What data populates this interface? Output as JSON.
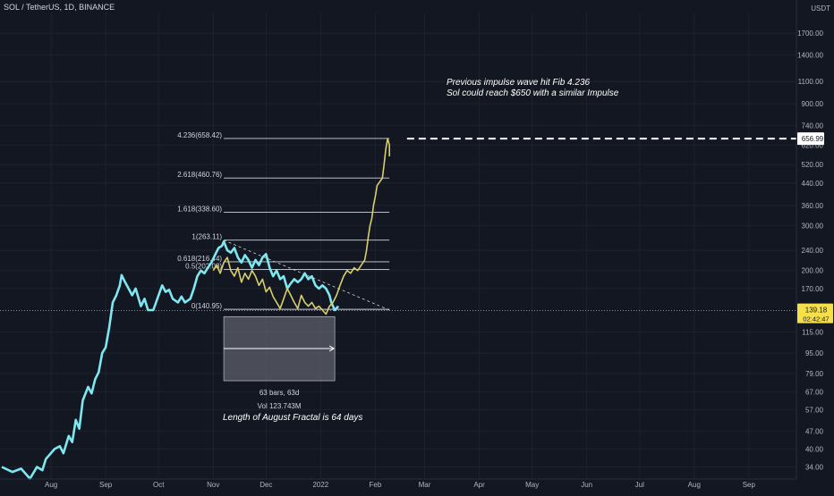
{
  "header": {
    "symbol": "SOL / TetherUS",
    "interval": "1D",
    "exchange": "BINANCE",
    "separator": ", "
  },
  "colors": {
    "background": "#131722",
    "grid": "#1e222d",
    "price_line": "#7ee7f0",
    "fractal_line": "#d8cf6a",
    "fib_line": "#d1d4dc",
    "current_price_bg": "#f5e04a",
    "current_price_line": "#f5e04a",
    "target_label_bg": "#ffffff",
    "measure_box": "#5d606b",
    "axis_text": "#b2b5be"
  },
  "annotations": {
    "target_line1": "Previous impulse wave hit Fib 4.236",
    "target_line2": "Sol could reach $650 with a similar Impulse",
    "fractal_note": "Length of August Fractal is 64 days",
    "measure_bars": "63 bars, 63d",
    "measure_vol": "Vol 123.743M"
  },
  "price_scale": {
    "currency": "USDT",
    "current_price": "139.18",
    "countdown": "02:42:47",
    "target_price": "656.99"
  },
  "chart_data": {
    "type": "line",
    "log_scale": true,
    "xlabel": "",
    "ylabel": "",
    "xlim": [
      "2021-07-03",
      "2022-09-28"
    ],
    "ylim": [
      30.5,
      2050
    ],
    "x_ticks": [
      {
        "label": "Aug",
        "date": "2021-08-01"
      },
      {
        "label": "Sep",
        "date": "2021-09-01"
      },
      {
        "label": "Oct",
        "date": "2021-10-01"
      },
      {
        "label": "Nov",
        "date": "2021-11-01"
      },
      {
        "label": "Dec",
        "date": "2021-12-01"
      },
      {
        "label": "2022",
        "date": "2022-01-01"
      },
      {
        "label": "Feb",
        "date": "2022-02-01"
      },
      {
        "label": "Mar",
        "date": "2022-03-01"
      },
      {
        "label": "Apr",
        "date": "2022-04-01"
      },
      {
        "label": "May",
        "date": "2022-05-01"
      },
      {
        "label": "Jun",
        "date": "2022-06-01"
      },
      {
        "label": "Jul",
        "date": "2022-07-01"
      },
      {
        "label": "Aug",
        "date": "2022-08-01"
      },
      {
        "label": "Sep",
        "date": "2022-09-01"
      }
    ],
    "y_ticks": [
      "34.00",
      "40.00",
      "47.00",
      "57.00",
      "67.00",
      "79.00",
      "95.00",
      "115.00",
      "170.00",
      "200.00",
      "240.00",
      "300.00",
      "360.00",
      "440.00",
      "520.00",
      "620.00",
      "740.00",
      "900.00",
      "1100.00",
      "1400.00",
      "1700.00"
    ],
    "series": [
      {
        "points": [
          [
            "2021-07-04",
            34.0
          ],
          [
            "2021-07-10",
            32.5
          ],
          [
            "2021-07-15",
            33.5
          ],
          [
            "2021-07-20",
            30.6
          ],
          [
            "2021-07-24",
            34.0
          ],
          [
            "2021-07-27",
            33.0
          ],
          [
            "2021-07-29",
            36.5
          ],
          [
            "2021-08-03",
            40.0
          ],
          [
            "2021-08-06",
            41.0
          ],
          [
            "2021-08-08",
            38.5
          ],
          [
            "2021-08-11",
            45.0
          ],
          [
            "2021-08-13",
            42.5
          ],
          [
            "2021-08-15",
            52.0
          ],
          [
            "2021-08-17",
            48.0
          ],
          [
            "2021-08-19",
            62.0
          ],
          [
            "2021-08-22",
            70.0
          ],
          [
            "2021-08-24",
            66.0
          ],
          [
            "2021-08-26",
            75.0
          ],
          [
            "2021-08-28",
            80.0
          ],
          [
            "2021-08-30",
            95.0
          ],
          [
            "2021-09-01",
            100.0
          ],
          [
            "2021-09-03",
            120.0
          ],
          [
            "2021-09-05",
            150.0
          ],
          [
            "2021-09-07",
            160.0
          ],
          [
            "2021-09-09",
            175.0
          ],
          [
            "2021-09-10",
            192.0
          ],
          [
            "2021-09-12",
            180.0
          ],
          [
            "2021-09-14",
            170.0
          ],
          [
            "2021-09-16",
            160.0
          ],
          [
            "2021-09-18",
            170.0
          ],
          [
            "2021-09-21",
            145.0
          ],
          [
            "2021-09-23",
            155.0
          ],
          [
            "2021-09-25",
            140.0
          ],
          [
            "2021-09-28",
            140.0
          ],
          [
            "2021-10-01",
            160.0
          ],
          [
            "2021-10-03",
            175.0
          ],
          [
            "2021-10-05",
            165.0
          ],
          [
            "2021-10-07",
            168.0
          ],
          [
            "2021-10-09",
            155.0
          ],
          [
            "2021-10-12",
            150.0
          ],
          [
            "2021-10-14",
            158.0
          ],
          [
            "2021-10-16",
            150.0
          ],
          [
            "2021-10-19",
            155.0
          ],
          [
            "2021-10-21",
            170.0
          ],
          [
            "2021-10-23",
            190.0
          ],
          [
            "2021-10-25",
            200.0
          ],
          [
            "2021-10-27",
            195.0
          ],
          [
            "2021-10-29",
            205.0
          ],
          [
            "2021-10-31",
            215.0
          ],
          [
            "2021-11-02",
            230.0
          ],
          [
            "2021-11-04",
            245.0
          ],
          [
            "2021-11-06",
            250.0
          ],
          [
            "2021-11-07",
            260.0
          ],
          [
            "2021-11-09",
            240.0
          ],
          [
            "2021-11-11",
            235.0
          ],
          [
            "2021-11-13",
            245.0
          ],
          [
            "2021-11-15",
            225.0
          ],
          [
            "2021-11-17",
            215.0
          ],
          [
            "2021-11-19",
            230.0
          ],
          [
            "2021-11-21",
            220.0
          ],
          [
            "2021-11-23",
            205.0
          ],
          [
            "2021-11-25",
            220.0
          ],
          [
            "2021-11-27",
            210.0
          ],
          [
            "2021-11-29",
            225.0
          ],
          [
            "2021-12-01",
            232.0
          ],
          [
            "2021-12-03",
            205.0
          ],
          [
            "2021-12-05",
            190.0
          ],
          [
            "2021-12-07",
            200.0
          ],
          [
            "2021-12-09",
            185.0
          ],
          [
            "2021-12-11",
            190.0
          ],
          [
            "2021-12-13",
            170.0
          ],
          [
            "2021-12-15",
            178.0
          ],
          [
            "2021-12-17",
            185.0
          ],
          [
            "2021-12-19",
            180.0
          ],
          [
            "2021-12-21",
            185.0
          ],
          [
            "2021-12-23",
            195.0
          ],
          [
            "2021-12-25",
            185.0
          ],
          [
            "2021-12-27",
            190.0
          ],
          [
            "2021-12-29",
            175.0
          ],
          [
            "2021-12-31",
            170.0
          ],
          [
            "2022-01-02",
            175.0
          ],
          [
            "2022-01-04",
            170.0
          ],
          [
            "2022-01-06",
            160.0
          ],
          [
            "2022-01-07",
            150.0
          ],
          [
            "2022-01-09",
            140.0
          ],
          [
            "2022-01-11",
            145.0
          ]
        ]
      },
      {
        "points": [
          [
            "2021-11-01",
            200.0
          ],
          [
            "2021-11-03",
            210.0
          ],
          [
            "2021-11-05",
            195.0
          ],
          [
            "2021-11-07",
            215.0
          ],
          [
            "2021-11-09",
            225.0
          ],
          [
            "2021-11-11",
            200.0
          ],
          [
            "2021-11-13",
            190.0
          ],
          [
            "2021-11-15",
            205.0
          ],
          [
            "2021-11-17",
            180.0
          ],
          [
            "2021-11-19",
            195.0
          ],
          [
            "2021-11-21",
            185.0
          ],
          [
            "2021-11-23",
            200.0
          ],
          [
            "2021-11-25",
            190.0
          ],
          [
            "2021-11-27",
            175.0
          ],
          [
            "2021-11-29",
            185.0
          ],
          [
            "2021-12-01",
            165.0
          ],
          [
            "2021-12-03",
            172.0
          ],
          [
            "2021-12-05",
            158.0
          ],
          [
            "2021-12-07",
            150.0
          ],
          [
            "2021-12-09",
            142.0
          ],
          [
            "2021-12-11",
            155.0
          ],
          [
            "2021-12-13",
            170.0
          ],
          [
            "2021-12-15",
            160.0
          ],
          [
            "2021-12-17",
            150.0
          ],
          [
            "2021-12-19",
            142.0
          ],
          [
            "2021-12-21",
            160.0
          ],
          [
            "2021-12-23",
            150.0
          ],
          [
            "2021-12-25",
            145.0
          ],
          [
            "2021-12-27",
            150.0
          ],
          [
            "2021-12-29",
            142.0
          ],
          [
            "2021-12-31",
            145.0
          ],
          [
            "2022-01-02",
            140.0
          ],
          [
            "2022-01-04",
            135.0
          ],
          [
            "2022-01-06",
            145.0
          ],
          [
            "2022-01-08",
            150.0
          ],
          [
            "2022-01-10",
            160.0
          ],
          [
            "2022-01-12",
            175.0
          ],
          [
            "2022-01-14",
            190.0
          ],
          [
            "2022-01-16",
            200.0
          ],
          [
            "2022-01-18",
            195.0
          ],
          [
            "2022-01-20",
            205.0
          ],
          [
            "2022-01-22",
            200.0
          ],
          [
            "2022-01-24",
            210.0
          ],
          [
            "2022-01-26",
            220.0
          ],
          [
            "2022-01-27",
            240.0
          ],
          [
            "2022-01-28",
            270.0
          ],
          [
            "2022-01-29",
            300.0
          ],
          [
            "2022-01-30",
            320.0
          ],
          [
            "2022-01-31",
            360.0
          ],
          [
            "2022-02-01",
            390.0
          ],
          [
            "2022-02-02",
            430.0
          ],
          [
            "2022-02-04",
            450.0
          ],
          [
            "2022-02-05",
            460.0
          ],
          [
            "2022-02-06",
            520.0
          ],
          [
            "2022-02-07",
            600.0
          ],
          [
            "2022-02-08",
            658.0
          ],
          [
            "2022-02-09",
            620.0
          ],
          [
            "2022-02-09",
            560.0
          ]
        ]
      }
    ],
    "fib_levels": [
      {
        "label": "4.236(658.42)",
        "value": 658.42
      },
      {
        "label": "2.618(460.76)",
        "value": 460.76
      },
      {
        "label": "1.618(338.60)",
        "value": 338.6
      },
      {
        "label": "1(263.11)",
        "value": 263.11
      },
      {
        "label": "0.618(216.44)",
        "value": 216.44
      },
      {
        "label": "0.5(202.03)",
        "value": 202.03
      },
      {
        "label": "0(140.95)",
        "value": 140.95
      }
    ],
    "fib_start": "2021-11-07",
    "fib_end": "2022-02-09",
    "trendline": {
      "from": [
        "2021-11-07",
        263.0
      ],
      "to": [
        "2022-02-09",
        140.0
      ]
    },
    "measure": {
      "start": "2021-11-07",
      "end": "2022-01-09",
      "top_price": 132.0,
      "bottom_price": 74.0,
      "arrow_price": 99.0
    },
    "target_line": {
      "from": "2022-02-19",
      "value": 656.99
    },
    "current_price_value": 139.18
  }
}
